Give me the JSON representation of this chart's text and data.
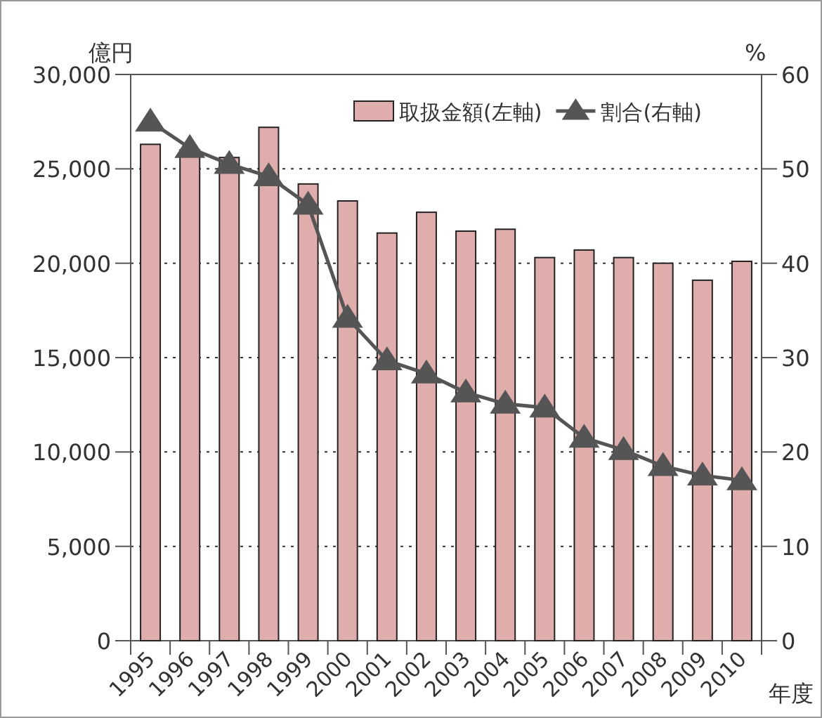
{
  "chart_data": {
    "type": "bar",
    "xlabel": "年度",
    "ylabel": "億円",
    "y2label": "%",
    "categories": [
      "1995",
      "1996",
      "1997",
      "1998",
      "1999",
      "2000",
      "2001",
      "2002",
      "2003",
      "2004",
      "2005",
      "2006",
      "2007",
      "2008",
      "2009",
      "2010"
    ],
    "series": [
      {
        "name": "取扱金額(左軸)",
        "color": "#e0adad",
        "values": [
          26300,
          26000,
          25600,
          27200,
          24200,
          23300,
          21600,
          22700,
          21700,
          21800,
          20300,
          20700,
          20300,
          20000,
          19100,
          20100
        ]
      },
      {
        "name": "割合(右軸)",
        "type": "line",
        "axis": "y2",
        "color": "#555555",
        "marker": "triangle",
        "values": [
          55.0,
          52.2,
          50.5,
          49.2,
          46.2,
          34.2,
          29.7,
          28.3,
          26.3,
          25.1,
          24.7,
          21.5,
          20.2,
          18.5,
          17.5,
          17.0
        ]
      }
    ],
    "ylim": [
      0,
      30000
    ],
    "yticks": [
      {
        "value": 0,
        "label": "0"
      },
      {
        "value": 5000,
        "label": "5,000"
      },
      {
        "value": 10000,
        "label": "10,000"
      },
      {
        "value": 15000,
        "label": "15,000"
      },
      {
        "value": 20000,
        "label": "20,000"
      },
      {
        "value": 25000,
        "label": "25,000"
      },
      {
        "value": 30000,
        "label": "30,000"
      }
    ],
    "y2lim": [
      0,
      60
    ],
    "y2ticks": [
      0,
      10,
      20,
      30,
      40,
      50,
      60
    ],
    "grid": "y",
    "legend": "top right"
  }
}
